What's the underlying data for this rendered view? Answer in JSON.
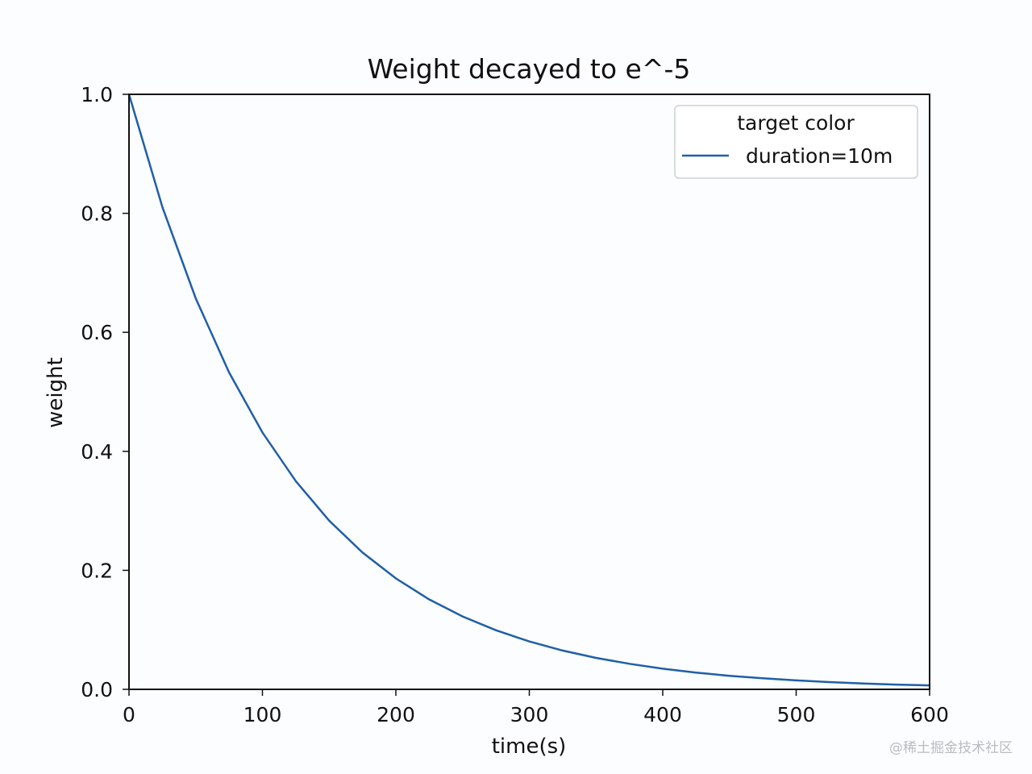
{
  "chart_data": {
    "type": "line",
    "title": "Weight decayed to e^-5",
    "xlabel": "time(s)",
    "ylabel": "weight",
    "xlim": [
      0,
      600
    ],
    "ylim": [
      0.0,
      1.0
    ],
    "x_ticks": [
      0,
      100,
      200,
      300,
      400,
      500,
      600
    ],
    "y_ticks": [
      "0.0",
      "0.2",
      "0.4",
      "0.6",
      "0.8",
      "1.0"
    ],
    "grid": false,
    "legend": {
      "title": "target color",
      "placement": "top-right"
    },
    "series": [
      {
        "name": "duration=10m",
        "color": "#1f5fa8",
        "x": [
          0,
          25,
          50,
          75,
          100,
          125,
          150,
          175,
          200,
          225,
          250,
          275,
          300,
          325,
          350,
          375,
          400,
          425,
          450,
          475,
          500,
          525,
          550,
          575,
          600
        ],
        "y": [
          1.0,
          0.8106,
          0.657,
          0.5326,
          0.4317,
          0.3499,
          0.2835,
          0.2299,
          0.1864,
          0.1511,
          0.1225,
          0.0993,
          0.0805,
          0.0652,
          0.0528,
          0.0429,
          0.0347,
          0.0281,
          0.0228,
          0.0185,
          0.015,
          0.0122,
          0.0099,
          0.008,
          0.0067
        ]
      }
    ]
  },
  "watermark": "@稀土掘金技术社区"
}
